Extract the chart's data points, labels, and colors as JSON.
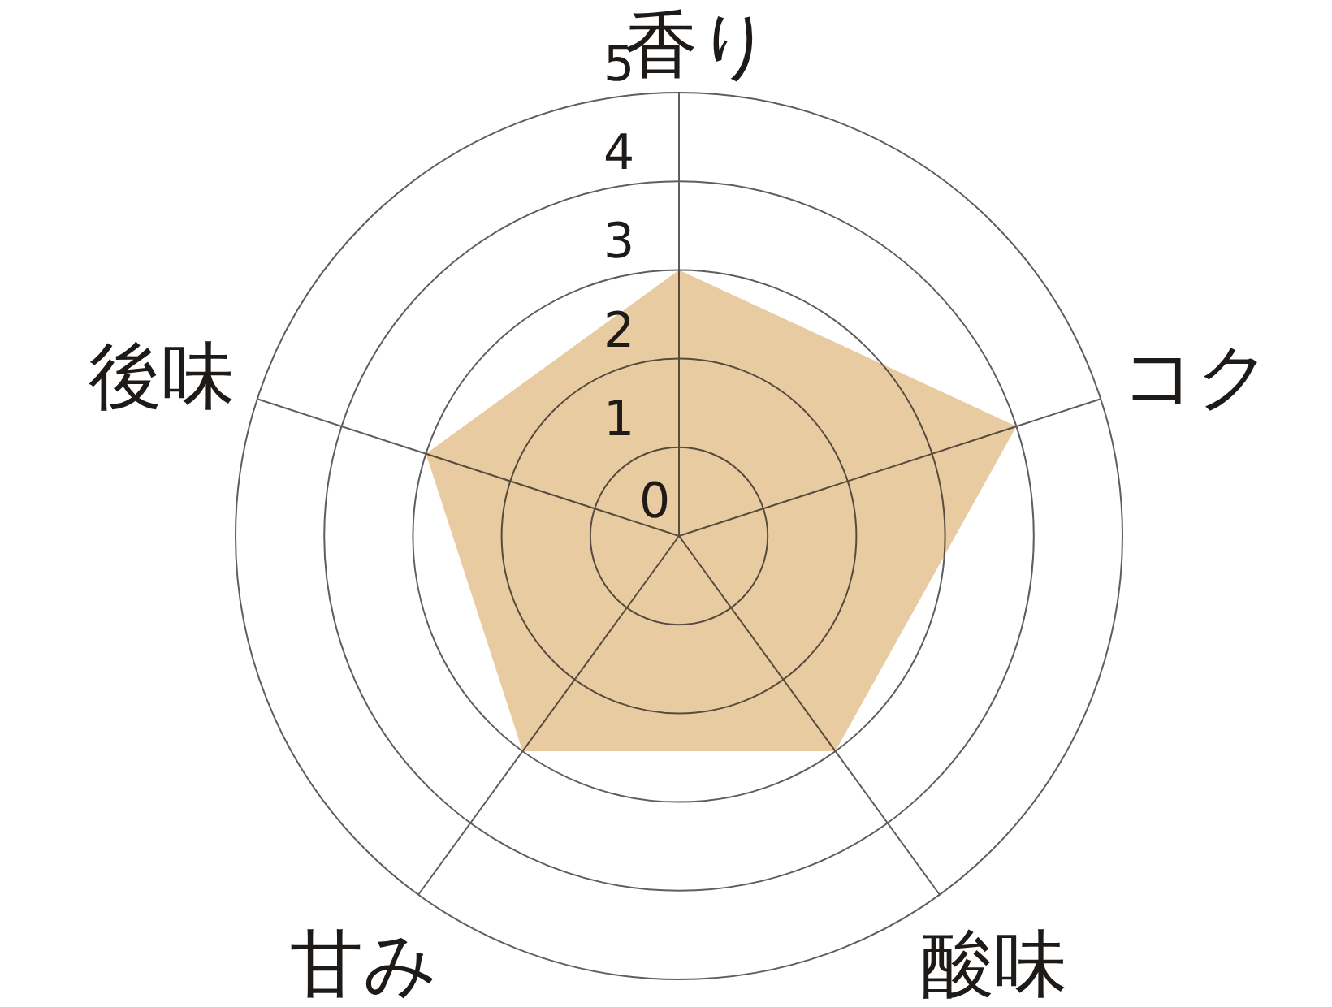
{
  "chart_data": {
    "type": "radar",
    "categories": [
      "香り",
      "コク",
      "酸味",
      "甘み",
      "後味"
    ],
    "series": [
      {
        "color": "#e9cba1",
        "values": [
          3,
          4,
          3,
          3,
          3
        ]
      }
    ],
    "ylim": [
      0,
      5
    ],
    "yticks": [
      0,
      1,
      2,
      3,
      4,
      5
    ],
    "grid": true
  }
}
